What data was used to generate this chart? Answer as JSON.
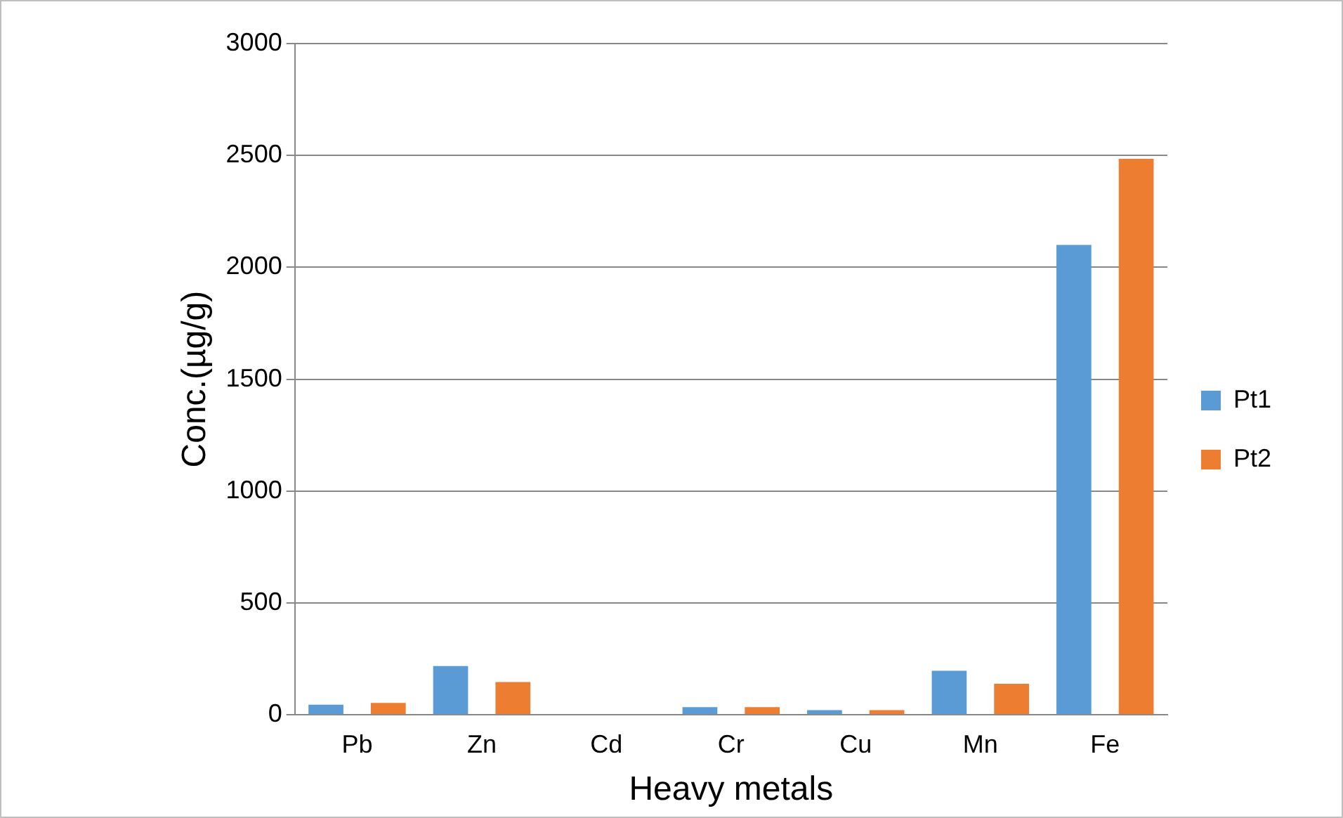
{
  "chart_data": {
    "type": "bar",
    "xlabel": "Heavy metals",
    "ylabel": "Conc.(µg/g)",
    "categories": [
      "Pb",
      "Zn",
      "Cd",
      "Cr",
      "Cu",
      "Mn",
      "Fe"
    ],
    "series": [
      {
        "name": "Pt1",
        "color": "#5b9bd5",
        "values": [
          45,
          218,
          0,
          34,
          21,
          197,
          2100
        ]
      },
      {
        "name": "Pt2",
        "color": "#ed7d31",
        "values": [
          53,
          147,
          0,
          34,
          21,
          139,
          2485
        ]
      }
    ],
    "ylim": [
      0,
      3000
    ],
    "yticks": [
      0,
      500,
      1000,
      1500,
      2000,
      2500,
      3000
    ],
    "grid": "y",
    "legend": "right"
  }
}
